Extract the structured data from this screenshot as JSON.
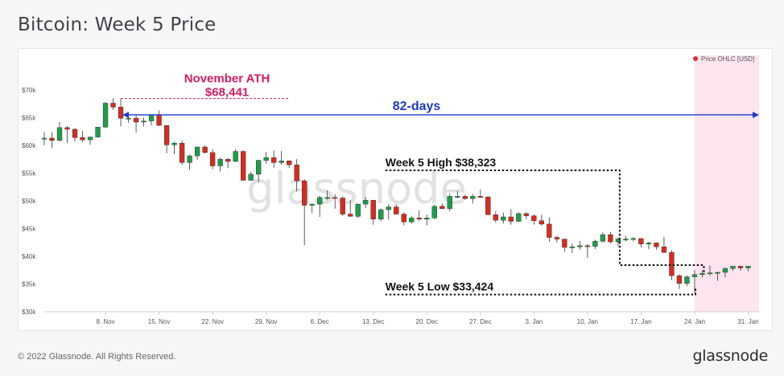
{
  "page": {
    "title": "Bitcoin: Week 5 Price",
    "copyright": "© 2022 Glassnode. All Rights Reserved.",
    "logo": "glassnode",
    "watermark": "glassnode"
  },
  "chart_data": {
    "type": "candlestick",
    "title": "Bitcoin: Week 5 Price",
    "legend": {
      "label": "Price OHLC [USD]",
      "color": "#d92d2d",
      "placement": "top-right"
    },
    "y_tick_labels": [
      "$30k",
      "$35k",
      "$40k",
      "$45k",
      "$50k",
      "$55k",
      "$60k",
      "$65k",
      "$70k"
    ],
    "y_ticks": [
      30000,
      35000,
      40000,
      45000,
      50000,
      55000,
      60000,
      65000,
      70000
    ],
    "ylim": [
      30000,
      71000
    ],
    "x_tick_labels": [
      "8. Nov",
      "15. Nov",
      "22. Nov",
      "29. Nov",
      "6. Dec",
      "13. Dec",
      "20. Dec",
      "27. Dec",
      "3. Jan",
      "10. Jan",
      "17. Jan",
      "24. Jan",
      "31. Jan"
    ],
    "x_ticks": [
      "2021-11-08",
      "2021-11-15",
      "2021-11-22",
      "2021-11-29",
      "2021-12-06",
      "2021-12-13",
      "2021-12-20",
      "2021-12-27",
      "2022-01-03",
      "2022-01-10",
      "2022-01-17",
      "2022-01-24",
      "2022-01-31"
    ],
    "xlim": [
      "2021-10-31",
      "2022-02-01"
    ],
    "colors": {
      "up": "#1e9e4a",
      "down": "#d62c1f",
      "highlight": "#ef8db5",
      "ath": "#d81b60",
      "arrow": "#1f3ac7"
    },
    "highlight_range": [
      "2022-01-24",
      "2022-02-01"
    ],
    "annotations": {
      "ath_title": "November ATH",
      "ath_value": "$68,441",
      "days": "82-days",
      "high": "Week 5 High $38,323",
      "low": "Week 5 Low $33,424"
    },
    "ath_price": 68441,
    "ath_date": "2021-11-10",
    "week5_high": 38323,
    "week5_low": 33424,
    "week5_start": "2022-01-24",
    "week5_end": "2022-01-31",
    "candles": [
      {
        "d": "2021-10-31",
        "o": 61300,
        "h": 62400,
        "l": 60000,
        "c": 61300
      },
      {
        "d": "2021-11-01",
        "o": 61300,
        "h": 62400,
        "l": 59500,
        "c": 60900
      },
      {
        "d": "2021-11-02",
        "o": 60900,
        "h": 64200,
        "l": 60700,
        "c": 63200
      },
      {
        "d": "2021-11-03",
        "o": 63200,
        "h": 63500,
        "l": 60400,
        "c": 62900
      },
      {
        "d": "2021-11-04",
        "o": 62900,
        "h": 63100,
        "l": 60700,
        "c": 61400
      },
      {
        "d": "2021-11-05",
        "o": 61400,
        "h": 62600,
        "l": 60700,
        "c": 61000
      },
      {
        "d": "2021-11-06",
        "o": 61000,
        "h": 61600,
        "l": 60100,
        "c": 61500
      },
      {
        "d": "2021-11-07",
        "o": 61500,
        "h": 63300,
        "l": 61400,
        "c": 63300
      },
      {
        "d": "2021-11-08",
        "o": 63300,
        "h": 67800,
        "l": 63100,
        "c": 67600
      },
      {
        "d": "2021-11-09",
        "o": 67600,
        "h": 68500,
        "l": 66400,
        "c": 66900
      },
      {
        "d": "2021-11-10",
        "o": 66900,
        "h": 68441,
        "l": 63400,
        "c": 64900
      },
      {
        "d": "2021-11-11",
        "o": 64900,
        "h": 65600,
        "l": 64100,
        "c": 64900
      },
      {
        "d": "2021-11-12",
        "o": 64900,
        "h": 65400,
        "l": 62300,
        "c": 64200
      },
      {
        "d": "2021-11-13",
        "o": 64200,
        "h": 65000,
        "l": 63400,
        "c": 64400
      },
      {
        "d": "2021-11-14",
        "o": 64400,
        "h": 65500,
        "l": 63600,
        "c": 65500
      },
      {
        "d": "2021-11-15",
        "o": 65500,
        "h": 66300,
        "l": 63500,
        "c": 63600
      },
      {
        "d": "2021-11-16",
        "o": 63600,
        "h": 63600,
        "l": 58600,
        "c": 60100
      },
      {
        "d": "2021-11-17",
        "o": 60100,
        "h": 60700,
        "l": 58400,
        "c": 60400
      },
      {
        "d": "2021-11-18",
        "o": 60400,
        "h": 60900,
        "l": 56500,
        "c": 56900
      },
      {
        "d": "2021-11-19",
        "o": 56900,
        "h": 58300,
        "l": 55600,
        "c": 58100
      },
      {
        "d": "2021-11-20",
        "o": 58100,
        "h": 59800,
        "l": 57400,
        "c": 59700
      },
      {
        "d": "2021-11-21",
        "o": 59700,
        "h": 60000,
        "l": 58500,
        "c": 58700
      },
      {
        "d": "2021-11-22",
        "o": 58700,
        "h": 59300,
        "l": 55700,
        "c": 56300
      },
      {
        "d": "2021-11-23",
        "o": 56300,
        "h": 57800,
        "l": 55300,
        "c": 57500
      },
      {
        "d": "2021-11-24",
        "o": 57500,
        "h": 57700,
        "l": 55900,
        "c": 57100
      },
      {
        "d": "2021-11-25",
        "o": 57100,
        "h": 59300,
        "l": 57000,
        "c": 58900
      },
      {
        "d": "2021-11-26",
        "o": 58900,
        "h": 59100,
        "l": 53600,
        "c": 53700
      },
      {
        "d": "2021-11-27",
        "o": 53700,
        "h": 55200,
        "l": 53600,
        "c": 54800
      },
      {
        "d": "2021-11-28",
        "o": 54800,
        "h": 57400,
        "l": 53300,
        "c": 57300
      },
      {
        "d": "2021-11-29",
        "o": 57300,
        "h": 58800,
        "l": 56700,
        "c": 57800
      },
      {
        "d": "2021-11-30",
        "o": 57800,
        "h": 59100,
        "l": 56000,
        "c": 56900
      },
      {
        "d": "2021-12-01",
        "o": 56900,
        "h": 59000,
        "l": 56500,
        "c": 57200
      },
      {
        "d": "2021-12-02",
        "o": 57200,
        "h": 57300,
        "l": 55900,
        "c": 56500
      },
      {
        "d": "2021-12-03",
        "o": 56500,
        "h": 57500,
        "l": 51700,
        "c": 53600
      },
      {
        "d": "2021-12-04",
        "o": 53600,
        "h": 53900,
        "l": 42000,
        "c": 49200
      },
      {
        "d": "2021-12-05",
        "o": 49200,
        "h": 49500,
        "l": 47800,
        "c": 49400
      },
      {
        "d": "2021-12-06",
        "o": 49400,
        "h": 50900,
        "l": 47100,
        "c": 50600
      },
      {
        "d": "2021-12-07",
        "o": 50600,
        "h": 51900,
        "l": 50100,
        "c": 50600
      },
      {
        "d": "2021-12-08",
        "o": 50600,
        "h": 51200,
        "l": 48600,
        "c": 50500
      },
      {
        "d": "2021-12-09",
        "o": 50500,
        "h": 50800,
        "l": 47300,
        "c": 47600
      },
      {
        "d": "2021-12-10",
        "o": 47600,
        "h": 50100,
        "l": 47300,
        "c": 47200
      },
      {
        "d": "2021-12-11",
        "o": 47200,
        "h": 49500,
        "l": 46900,
        "c": 49400
      },
      {
        "d": "2021-12-12",
        "o": 49400,
        "h": 50700,
        "l": 48700,
        "c": 50100
      },
      {
        "d": "2021-12-13",
        "o": 50100,
        "h": 50200,
        "l": 45700,
        "c": 46700
      },
      {
        "d": "2021-12-14",
        "o": 46700,
        "h": 48600,
        "l": 46300,
        "c": 48400
      },
      {
        "d": "2021-12-15",
        "o": 48400,
        "h": 49400,
        "l": 46600,
        "c": 48900
      },
      {
        "d": "2021-12-16",
        "o": 48900,
        "h": 49400,
        "l": 47600,
        "c": 47600
      },
      {
        "d": "2021-12-17",
        "o": 47600,
        "h": 47900,
        "l": 45600,
        "c": 46200
      },
      {
        "d": "2021-12-18",
        "o": 46200,
        "h": 47300,
        "l": 45900,
        "c": 46900
      },
      {
        "d": "2021-12-19",
        "o": 46900,
        "h": 48300,
        "l": 46400,
        "c": 46700
      },
      {
        "d": "2021-12-20",
        "o": 46700,
        "h": 47500,
        "l": 45600,
        "c": 46900
      },
      {
        "d": "2021-12-21",
        "o": 46900,
        "h": 49300,
        "l": 46700,
        "c": 49000
      },
      {
        "d": "2021-12-22",
        "o": 49000,
        "h": 49500,
        "l": 48500,
        "c": 48600
      },
      {
        "d": "2021-12-23",
        "o": 48600,
        "h": 51300,
        "l": 48100,
        "c": 50800
      },
      {
        "d": "2021-12-24",
        "o": 50800,
        "h": 51800,
        "l": 50500,
        "c": 50800
      },
      {
        "d": "2021-12-25",
        "o": 50800,
        "h": 51100,
        "l": 50200,
        "c": 50400
      },
      {
        "d": "2021-12-26",
        "o": 50400,
        "h": 51200,
        "l": 49500,
        "c": 50800
      },
      {
        "d": "2021-12-27",
        "o": 50800,
        "h": 52000,
        "l": 50500,
        "c": 50700
      },
      {
        "d": "2021-12-28",
        "o": 50700,
        "h": 50800,
        "l": 47400,
        "c": 47500
      },
      {
        "d": "2021-12-29",
        "o": 47500,
        "h": 48100,
        "l": 46100,
        "c": 46500
      },
      {
        "d": "2021-12-30",
        "o": 46500,
        "h": 47900,
        "l": 45900,
        "c": 47100
      },
      {
        "d": "2021-12-31",
        "o": 47100,
        "h": 48500,
        "l": 45700,
        "c": 46300
      },
      {
        "d": "2022-01-01",
        "o": 46300,
        "h": 47900,
        "l": 46200,
        "c": 47700
      },
      {
        "d": "2022-01-02",
        "o": 47700,
        "h": 47900,
        "l": 46700,
        "c": 47300
      },
      {
        "d": "2022-01-03",
        "o": 47300,
        "h": 47500,
        "l": 45700,
        "c": 46400
      },
      {
        "d": "2022-01-04",
        "o": 46400,
        "h": 47500,
        "l": 45500,
        "c": 45800
      },
      {
        "d": "2022-01-05",
        "o": 45800,
        "h": 47000,
        "l": 42600,
        "c": 43400
      },
      {
        "d": "2022-01-06",
        "o": 43400,
        "h": 43700,
        "l": 42500,
        "c": 43100
      },
      {
        "d": "2022-01-07",
        "o": 43100,
        "h": 43100,
        "l": 40800,
        "c": 41600
      },
      {
        "d": "2022-01-08",
        "o": 41600,
        "h": 42300,
        "l": 40600,
        "c": 41700
      },
      {
        "d": "2022-01-09",
        "o": 41700,
        "h": 42800,
        "l": 41200,
        "c": 41900
      },
      {
        "d": "2022-01-10",
        "o": 41900,
        "h": 42200,
        "l": 39700,
        "c": 41800
      },
      {
        "d": "2022-01-11",
        "o": 41800,
        "h": 43000,
        "l": 41300,
        "c": 42700
      },
      {
        "d": "2022-01-12",
        "o": 42700,
        "h": 44300,
        "l": 42500,
        "c": 43900
      },
      {
        "d": "2022-01-13",
        "o": 43900,
        "h": 44400,
        "l": 42300,
        "c": 42600
      },
      {
        "d": "2022-01-14",
        "o": 42600,
        "h": 43400,
        "l": 41800,
        "c": 43100
      },
      {
        "d": "2022-01-15",
        "o": 43100,
        "h": 43700,
        "l": 42700,
        "c": 43100
      },
      {
        "d": "2022-01-16",
        "o": 43100,
        "h": 43500,
        "l": 42700,
        "c": 43200
      },
      {
        "d": "2022-01-17",
        "o": 43200,
        "h": 43200,
        "l": 41600,
        "c": 42200
      },
      {
        "d": "2022-01-18",
        "o": 42200,
        "h": 42600,
        "l": 41300,
        "c": 42400
      },
      {
        "d": "2022-01-19",
        "o": 42400,
        "h": 42500,
        "l": 41200,
        "c": 41700
      },
      {
        "d": "2022-01-20",
        "o": 41700,
        "h": 43500,
        "l": 40600,
        "c": 40700
      },
      {
        "d": "2022-01-21",
        "o": 40700,
        "h": 41100,
        "l": 35700,
        "c": 36500
      },
      {
        "d": "2022-01-22",
        "o": 36500,
        "h": 36800,
        "l": 34100,
        "c": 35100
      },
      {
        "d": "2022-01-23",
        "o": 35100,
        "h": 36500,
        "l": 34600,
        "c": 36300
      },
      {
        "d": "2022-01-24",
        "o": 36300,
        "h": 37500,
        "l": 33424,
        "c": 36700
      },
      {
        "d": "2022-01-25",
        "o": 36700,
        "h": 37500,
        "l": 36200,
        "c": 36900
      },
      {
        "d": "2022-01-26",
        "o": 36900,
        "h": 38323,
        "l": 36500,
        "c": 37000
      },
      {
        "d": "2022-01-27",
        "o": 37000,
        "h": 37200,
        "l": 35600,
        "c": 37100
      },
      {
        "d": "2022-01-28",
        "o": 37100,
        "h": 38000,
        "l": 36200,
        "c": 37800
      },
      {
        "d": "2022-01-29",
        "o": 37800,
        "h": 38200,
        "l": 37400,
        "c": 38200
      },
      {
        "d": "2022-01-30",
        "o": 38200,
        "h": 38300,
        "l": 37400,
        "c": 37900
      },
      {
        "d": "2022-01-31",
        "o": 37900,
        "h": 38200,
        "l": 37300,
        "c": 38200
      }
    ]
  }
}
